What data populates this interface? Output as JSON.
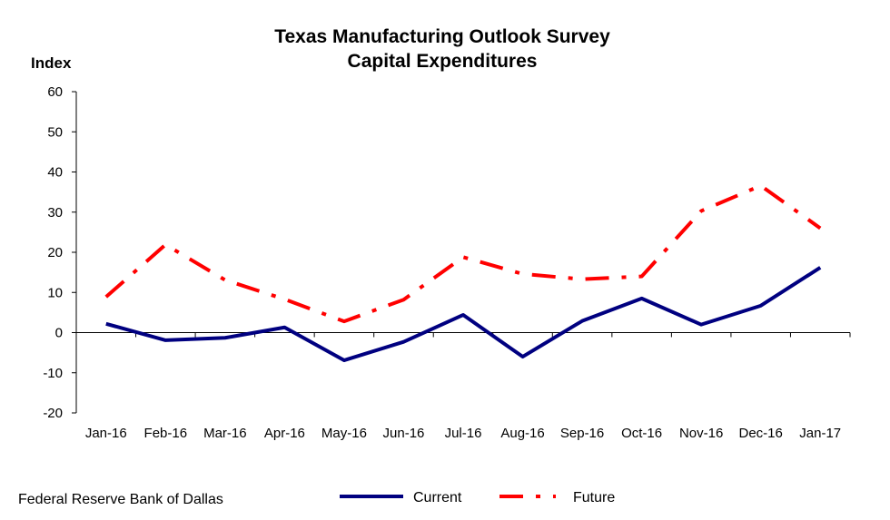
{
  "title_line1": "Texas Manufacturing Outlook Survey",
  "title_line2": "Capital Expenditures",
  "ylabel": "Index",
  "source": "Federal Reserve Bank of Dallas",
  "chart_data": {
    "type": "line",
    "title": "Texas Manufacturing Outlook Survey Capital Expenditures",
    "xlabel": "",
    "ylabel": "Index",
    "categories": [
      "Jan-16",
      "Feb-16",
      "Mar-16",
      "Apr-16",
      "May-16",
      "Jun-16",
      "Jul-16",
      "Aug-16",
      "Sep-16",
      "Oct-16",
      "Nov-16",
      "Dec-16",
      "Jan-17"
    ],
    "ylim": [
      -20,
      60
    ],
    "yticks": [
      -20,
      -10,
      0,
      10,
      20,
      30,
      40,
      50,
      60
    ],
    "grid": false,
    "legend_position": "bottom",
    "series": [
      {
        "name": "Current",
        "color": "#000080",
        "style": "solid",
        "values": [
          2.2,
          -1.9,
          -1.3,
          1.3,
          -6.9,
          -2.3,
          4.4,
          -6.0,
          2.9,
          8.5,
          2.0,
          6.7,
          16.2
        ]
      },
      {
        "name": "Future",
        "color": "#ff0000",
        "style": "dash-dot",
        "values": [
          8.9,
          21.9,
          13.1,
          8.3,
          2.8,
          8.2,
          18.8,
          14.6,
          13.3,
          14.0,
          30.3,
          36.6,
          26.0
        ]
      }
    ]
  }
}
